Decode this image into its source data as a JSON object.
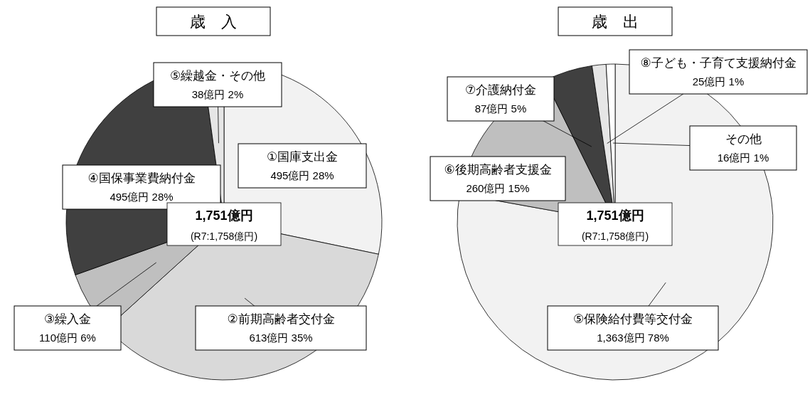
{
  "chart_data": [
    {
      "type": "pie",
      "title": "歳　入",
      "categories": [
        "①国庫支出金",
        "②前期高齢者交付金",
        "③繰入金",
        "④国保事業費納付金",
        "⑤繰越金・その他"
      ],
      "values": [
        495,
        613,
        110,
        495,
        38
      ],
      "colors": [
        "#f2f2f2",
        "#d9d9d9",
        "#bfbfbf",
        "#404040",
        "#e6e6e6"
      ],
      "value_labels": [
        "495億円 28%",
        "613億円 35%",
        "110億円 6%",
        "495億円 28%",
        "38億円 2%"
      ],
      "annotations": [
        "1,751億円",
        "(R7:1,758億円)"
      ]
    },
    {
      "type": "pie",
      "title": "歳　出",
      "categories": [
        "⑤保険給付費等交付金",
        "⑥後期高齢者支援金",
        "⑦介護納付金",
        "⑧子ども・子育て支援納付金",
        "その他"
      ],
      "values": [
        1363,
        260,
        87,
        25,
        16
      ],
      "colors": [
        "#f2f2f2",
        "#bfbfbf",
        "#404040",
        "#e6e6e6",
        "#ffffff"
      ],
      "value_labels": [
        "1,363億円 78%",
        "260億円 15%",
        "87億円 5%",
        "25億円 1%",
        "16億円 1%"
      ],
      "annotations": [
        "1,751億円",
        "(R7:1,758億円)"
      ]
    }
  ]
}
